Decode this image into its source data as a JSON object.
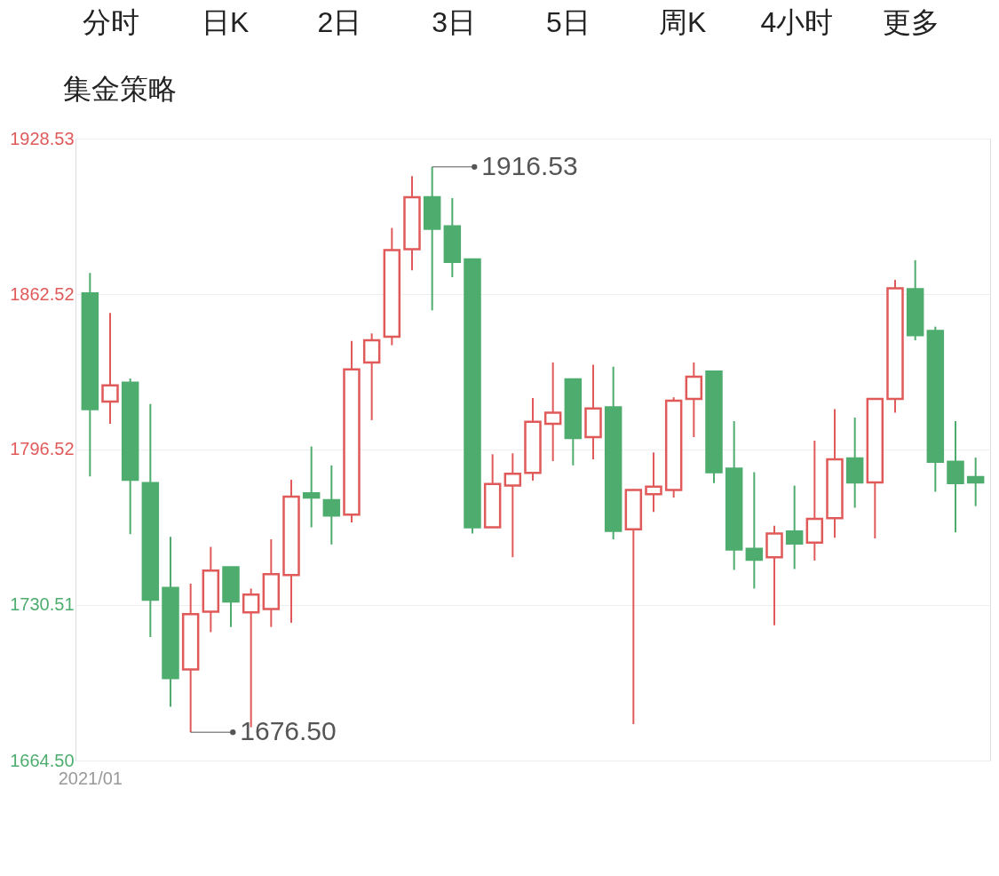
{
  "chart_data": {
    "type": "candlestick",
    "categories": [
      "2021/01",
      null,
      null,
      null,
      null,
      null,
      null,
      null,
      null,
      null,
      null,
      null,
      null,
      null,
      null,
      null,
      null,
      null,
      null,
      null,
      null,
      null,
      null,
      null,
      null,
      null,
      null,
      null,
      null,
      null,
      null,
      null,
      null,
      null,
      null,
      null,
      null,
      null,
      null,
      null,
      null,
      null,
      null,
      null,
      null
    ],
    "ohlc": [
      [
        1862.8,
        1871.5,
        1785.1,
        1813.7
      ],
      [
        1816.9,
        1854.5,
        1807.5,
        1823.8
      ],
      [
        1824.9,
        1826.7,
        1760.6,
        1783.7
      ],
      [
        1782.3,
        1815.8,
        1716.9,
        1732.8
      ],
      [
        1737.8,
        1759.5,
        1687.3,
        1699.5
      ],
      [
        1703.2,
        1739.6,
        1676.5,
        1726.6
      ],
      [
        1727.7,
        1755.2,
        1719.0,
        1745.1
      ],
      [
        1746.5,
        1746.5,
        1721.2,
        1732.0
      ],
      [
        1727.4,
        1737.5,
        1678.6,
        1734.9
      ],
      [
        1728.8,
        1758.4,
        1721.2,
        1743.6
      ],
      [
        1743.2,
        1783.7,
        1723.0,
        1776.5
      ],
      [
        1777.9,
        1797.8,
        1763.5,
        1776.1
      ],
      [
        1775.0,
        1789.8,
        1756.2,
        1768.5
      ],
      [
        1768.9,
        1842.6,
        1765.6,
        1830.6
      ],
      [
        1833.5,
        1845.8,
        1809.0,
        1842.9
      ],
      [
        1844.4,
        1890.6,
        1840.8,
        1881.2
      ],
      [
        1881.6,
        1912.6,
        1872.6,
        1903.6
      ],
      [
        1903.6,
        1916.53,
        1855.6,
        1890.2
      ],
      [
        1891.3,
        1903.3,
        1869.7,
        1876.2
      ],
      [
        1877.2,
        1877.6,
        1760.9,
        1763.5
      ],
      [
        1763.5,
        1794.5,
        1763.5,
        1781.9
      ],
      [
        1781.2,
        1794.9,
        1750.8,
        1786.2
      ],
      [
        1786.6,
        1818.4,
        1783.3,
        1808.3
      ],
      [
        1807.5,
        1833.5,
        1791.6,
        1812.2
      ],
      [
        1826.3,
        1826.3,
        1789.8,
        1801.4
      ],
      [
        1801.8,
        1832.5,
        1792.4,
        1814.0
      ],
      [
        1814.4,
        1831.7,
        1758.4,
        1762.0
      ],
      [
        1762.7,
        1779.7,
        1680.0,
        1779.4
      ],
      [
        1777.6,
        1795.3,
        1770.0,
        1780.8
      ],
      [
        1779.4,
        1818.7,
        1776.1,
        1817.3
      ],
      [
        1818.0,
        1833.5,
        1801.8,
        1827.4
      ],
      [
        1829.6,
        1829.9,
        1782.3,
        1786.9
      ],
      [
        1788.4,
        1808.6,
        1745.4,
        1754.1
      ],
      [
        1754.4,
        1786.9,
        1737.5,
        1749.7
      ],
      [
        1750.8,
        1764.2,
        1721.9,
        1760.9
      ],
      [
        1761.7,
        1781.2,
        1745.8,
        1756.6
      ],
      [
        1757.0,
        1800.3,
        1749.4,
        1767.1
      ],
      [
        1767.4,
        1813.7,
        1759.1,
        1792.4
      ],
      [
        1792.7,
        1810.1,
        1771.8,
        1782.6
      ],
      [
        1782.6,
        1818.0,
        1758.8,
        1818.0
      ],
      [
        1818.0,
        1868.6,
        1812.2,
        1865.0
      ],
      [
        1864.6,
        1876.9,
        1842.9,
        1845.1
      ],
      [
        1846.9,
        1848.7,
        1778.6,
        1791.3
      ],
      [
        1791.3,
        1808.6,
        1761.3,
        1782.3
      ],
      [
        1784.8,
        1793.1,
        1772.5,
        1782.6
      ]
    ],
    "colors": [
      "#4ead6e",
      "#e05a5a",
      "#4ead6e",
      "#4ead6e",
      "#4ead6e",
      "#e05a5a",
      "#e05a5a",
      "#4ead6e",
      "#e05a5a",
      "#e05a5a",
      "#e05a5a",
      "#4ead6e",
      "#4ead6e",
      "#e05a5a",
      "#e05a5a",
      "#e05a5a",
      "#e05a5a",
      "#4ead6e",
      "#4ead6e",
      "#4ead6e",
      "#e05a5a",
      "#e05a5a",
      "#e05a5a",
      "#e05a5a",
      "#4ead6e",
      "#e05a5a",
      "#4ead6e",
      "#e05a5a",
      "#e05a5a",
      "#e05a5a",
      "#e05a5a",
      "#4ead6e",
      "#4ead6e",
      "#4ead6e",
      "#e05a5a",
      "#4ead6e",
      "#e05a5a",
      "#e05a5a",
      "#4ead6e",
      "#e05a5a",
      "#e05a5a",
      "#4ead6e",
      "#4ead6e",
      "#4ead6e",
      "#4ead6e"
    ],
    "ylim": [
      1664.5,
      1928.53
    ],
    "yticks": [
      {
        "value": 1664.5,
        "label": "1664.50"
      },
      {
        "value": 1730.51,
        "label": "1730.51"
      },
      {
        "value": 1796.52,
        "label": "1796.52"
      },
      {
        "value": 1862.52,
        "label": "1862.52"
      },
      {
        "value": 1928.53,
        "label": "1928.53"
      }
    ],
    "grid": "y",
    "annotations": [
      "1916.53",
      "1676.50",
      "分时",
      "日K",
      "2日",
      "3日",
      "5日",
      "周K",
      "4小时",
      "更多",
      "集金策略"
    ]
  }
}
